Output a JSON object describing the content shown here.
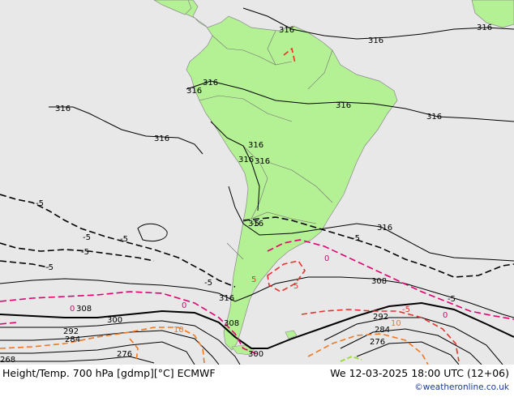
{
  "footer": {
    "title": "Height/Temp. 700 hPa [gdmp][°C] ECMWF",
    "time": "We 12-03-2025 18:00 UTC (12+06)",
    "credit": "©weatheronline.co.uk"
  },
  "legend": {
    "height_contour_unit": "gdmp",
    "temperature_contour_unit": "°C"
  },
  "colors": {
    "ocean": "#e8e8e8",
    "land": "#b4f094",
    "height_contour": "#000000",
    "temp_neg5": "#000000",
    "temp_zero": "#e0006f",
    "temp_pos5": "#e8302c",
    "temp_pos10": "#f07820",
    "temp_pos15": "#9ad840"
  },
  "height_labels": {
    "h316_a": "316",
    "h316_b": "316",
    "h316_c": "316",
    "h316_d": "316",
    "h316_e": "316",
    "h316_f": "316",
    "h316_g": "316",
    "h316_h": "316",
    "h316_i": "316",
    "h316_j": "316",
    "h316_k": "316",
    "h316_l": "316",
    "h316_m": "316",
    "h316_n": "316",
    "h316_o": "316",
    "h308_a": "308",
    "h308_b": "308",
    "h308_c": "308",
    "h300_a": "300",
    "h300_b": "300",
    "h292_a": "292",
    "h292_b": "292",
    "h284_a": "284",
    "h284_b": "284",
    "h276_a": "276",
    "h276_b": "276",
    "h268": "268"
  },
  "temp_labels": {
    "t_neg5_a": "-5",
    "t_neg5_b": "-5",
    "t_neg5_c": "-5",
    "t_neg5_d": "-5",
    "t_neg5_e": "-5",
    "t_neg5_f": "-5",
    "t_neg5_g": "-5",
    "t_neg5_h": "-5",
    "t_neg5_i": "-5",
    "t_neg5_j": "-5",
    "t_0_a": "0",
    "t_0_b": "0",
    "t_0_c": "0",
    "t_0_d": "0",
    "t_pos5_a": "5",
    "t_pos5_b": "5",
    "t_pos10_a": "10",
    "t_pos10_b": "10"
  }
}
